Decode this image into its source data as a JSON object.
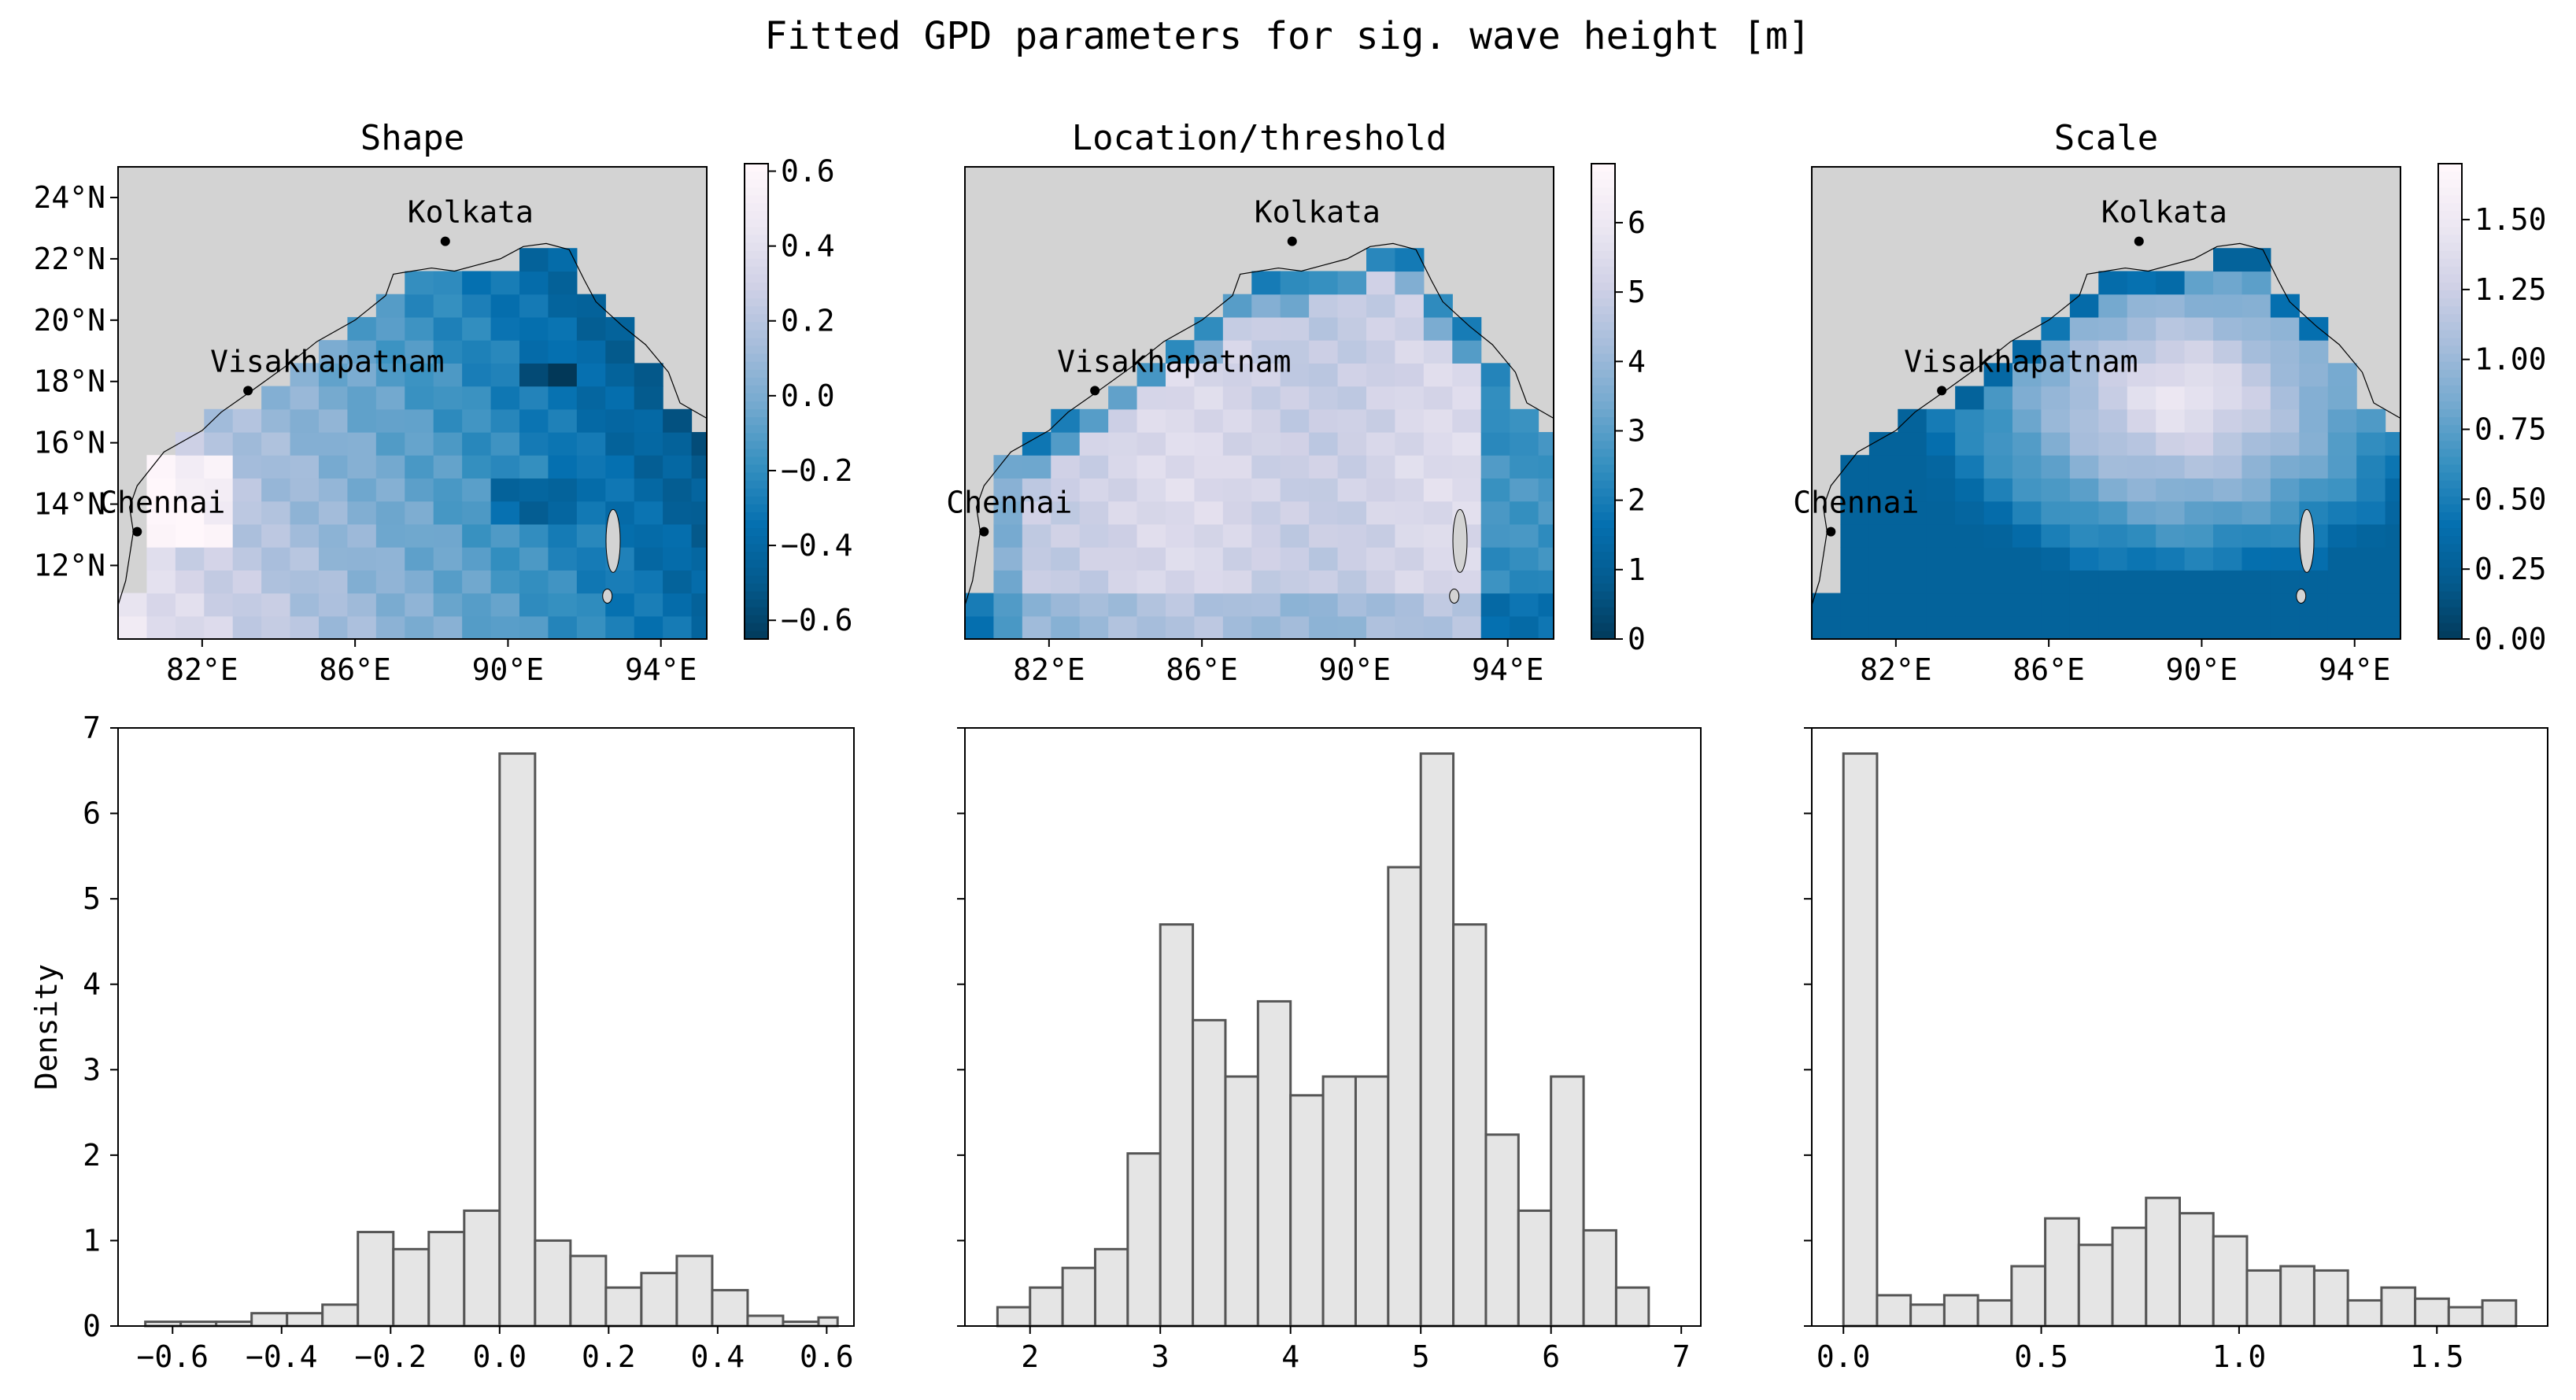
{
  "figure": {
    "title": "Fitted GPD parameters for sig. wave height [m]"
  },
  "colors": {
    "land": "#d3d3d3",
    "cmap": [
      "#023858",
      "#045a8d",
      "#0570b0",
      "#3690c0",
      "#74a9cf",
      "#a6bddb",
      "#d0d1e6",
      "#ece7f2",
      "#fff7fb"
    ],
    "hist_fill": "#e5e5e5",
    "hist_edge": "#555555"
  },
  "maps": {
    "xticks": [
      "82°E",
      "86°E",
      "90°E",
      "94°E"
    ],
    "yticks": [
      "24°N",
      "22°N",
      "20°N",
      "18°N",
      "16°N",
      "14°N",
      "12°N"
    ],
    "cities": [
      {
        "name": "Kolkata"
      },
      {
        "name": "Visakhapatnam"
      },
      {
        "name": "Chennai"
      }
    ]
  },
  "chart_data": [
    {
      "type": "heatmap",
      "title": "Shape",
      "colorbar": {
        "min": -0.65,
        "max": 0.62,
        "ticks": [
          "0.6",
          "0.4",
          "0.2",
          "0.0",
          "−0.2",
          "−0.4",
          "−0.6"
        ],
        "tick_values": [
          0.6,
          0.4,
          0.2,
          0.0,
          -0.2,
          -0.4,
          -0.6
        ]
      }
    },
    {
      "type": "heatmap",
      "title": "Location/threshold",
      "colorbar": {
        "min": 0,
        "max": 6.85,
        "ticks": [
          "6",
          "5",
          "4",
          "3",
          "2",
          "1",
          "0"
        ],
        "tick_values": [
          6,
          5,
          4,
          3,
          2,
          1,
          0
        ]
      }
    },
    {
      "type": "heatmap",
      "title": "Scale",
      "colorbar": {
        "min": 0,
        "max": 1.7,
        "ticks": [
          "1.50",
          "1.25",
          "1.00",
          "0.75",
          "0.50",
          "0.25",
          "0.00"
        ],
        "tick_values": [
          1.5,
          1.25,
          1.0,
          0.75,
          0.5,
          0.25,
          0.0
        ]
      }
    },
    {
      "type": "bar",
      "ylabel": "Density",
      "xlim": [
        -0.7,
        0.65
      ],
      "ylim": [
        0,
        7
      ],
      "bin_edges": [
        -0.65,
        -0.585,
        -0.52,
        -0.455,
        -0.39,
        -0.325,
        -0.26,
        -0.195,
        -0.13,
        -0.065,
        0.0,
        0.065,
        0.13,
        0.195,
        0.26,
        0.325,
        0.39,
        0.455,
        0.52,
        0.585,
        0.62
      ],
      "values": [
        0.05,
        0.05,
        0.05,
        0.15,
        0.15,
        0.25,
        1.1,
        0.9,
        1.1,
        1.35,
        6.7,
        1.0,
        0.82,
        0.45,
        0.62,
        0.82,
        0.42,
        0.12,
        0.05,
        0.1
      ],
      "xticks": [
        "−0.6",
        "−0.4",
        "−0.2",
        "0.0",
        "0.2",
        "0.4",
        "0.6"
      ],
      "xtick_values": [
        -0.6,
        -0.4,
        -0.2,
        0.0,
        0.2,
        0.4,
        0.6
      ],
      "yticks": [
        "0",
        "1",
        "2",
        "3",
        "4",
        "5",
        "6",
        "7"
      ],
      "ytick_values": [
        0,
        1,
        2,
        3,
        4,
        5,
        6,
        7
      ]
    },
    {
      "type": "bar",
      "xlim": [
        1.5,
        7.15
      ],
      "ylim": [
        0,
        7
      ],
      "bin_edges": [
        1.75,
        2.0,
        2.25,
        2.5,
        2.75,
        3.0,
        3.25,
        3.5,
        3.75,
        4.0,
        4.25,
        4.5,
        4.75,
        5.0,
        5.25,
        5.5,
        5.75,
        6.0,
        6.25,
        6.5,
        6.75
      ],
      "values": [
        0.22,
        0.45,
        0.68,
        0.9,
        2.02,
        4.7,
        3.58,
        2.92,
        3.8,
        2.7,
        2.92,
        2.92,
        5.37,
        6.7,
        4.7,
        2.24,
        1.35,
        2.92,
        1.12,
        0.45
      ],
      "xticks": [
        "2",
        "3",
        "4",
        "5",
        "6",
        "7"
      ],
      "xtick_values": [
        2,
        3,
        4,
        5,
        6,
        7
      ],
      "ytick_values": [
        0,
        1,
        2,
        3,
        4,
        5,
        6,
        7
      ]
    },
    {
      "type": "bar",
      "xlim": [
        -0.08,
        1.78
      ],
      "ylim": [
        0,
        7
      ],
      "bin_edges": [
        0.0,
        0.085,
        0.17,
        0.255,
        0.34,
        0.425,
        0.51,
        0.595,
        0.68,
        0.765,
        0.85,
        0.935,
        1.02,
        1.105,
        1.19,
        1.275,
        1.36,
        1.445,
        1.53,
        1.615,
        1.7
      ],
      "values": [
        6.7,
        0.36,
        0.25,
        0.36,
        0.3,
        0.7,
        1.26,
        0.95,
        1.15,
        1.5,
        1.32,
        1.05,
        0.65,
        0.7,
        0.65,
        0.3,
        0.45,
        0.32,
        0.22,
        0.3
      ],
      "xticks": [
        "0.0",
        "0.5",
        "1.0",
        "1.5"
      ],
      "xtick_values": [
        0.0,
        0.5,
        1.0,
        1.5
      ],
      "ytick_values": [
        0,
        1,
        2,
        3,
        4,
        5,
        6,
        7
      ]
    }
  ]
}
